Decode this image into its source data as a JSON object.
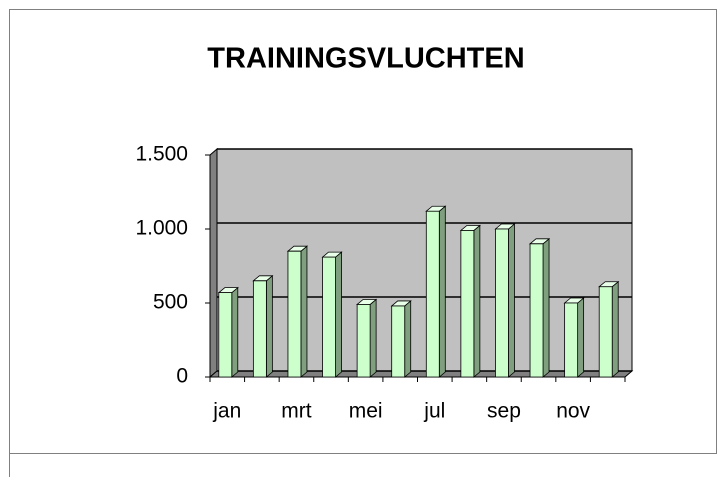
{
  "chart_data": {
    "type": "bar3d",
    "title": "TRAININGSVLUCHTEN",
    "categories": [
      "jan",
      null,
      "mrt",
      null,
      "mei",
      null,
      "jul",
      null,
      "sep",
      null,
      "nov",
      null
    ],
    "values": [
      570,
      650,
      850,
      810,
      490,
      480,
      1120,
      990,
      1000,
      900,
      500,
      610
    ],
    "color": "#ccffcc",
    "ylim": [
      0,
      1500
    ],
    "yticks": [
      0,
      500,
      {
        "value": 1000,
        "label": "1.000"
      },
      {
        "value": 1500,
        "label": "1.500"
      }
    ],
    "grid": true
  }
}
